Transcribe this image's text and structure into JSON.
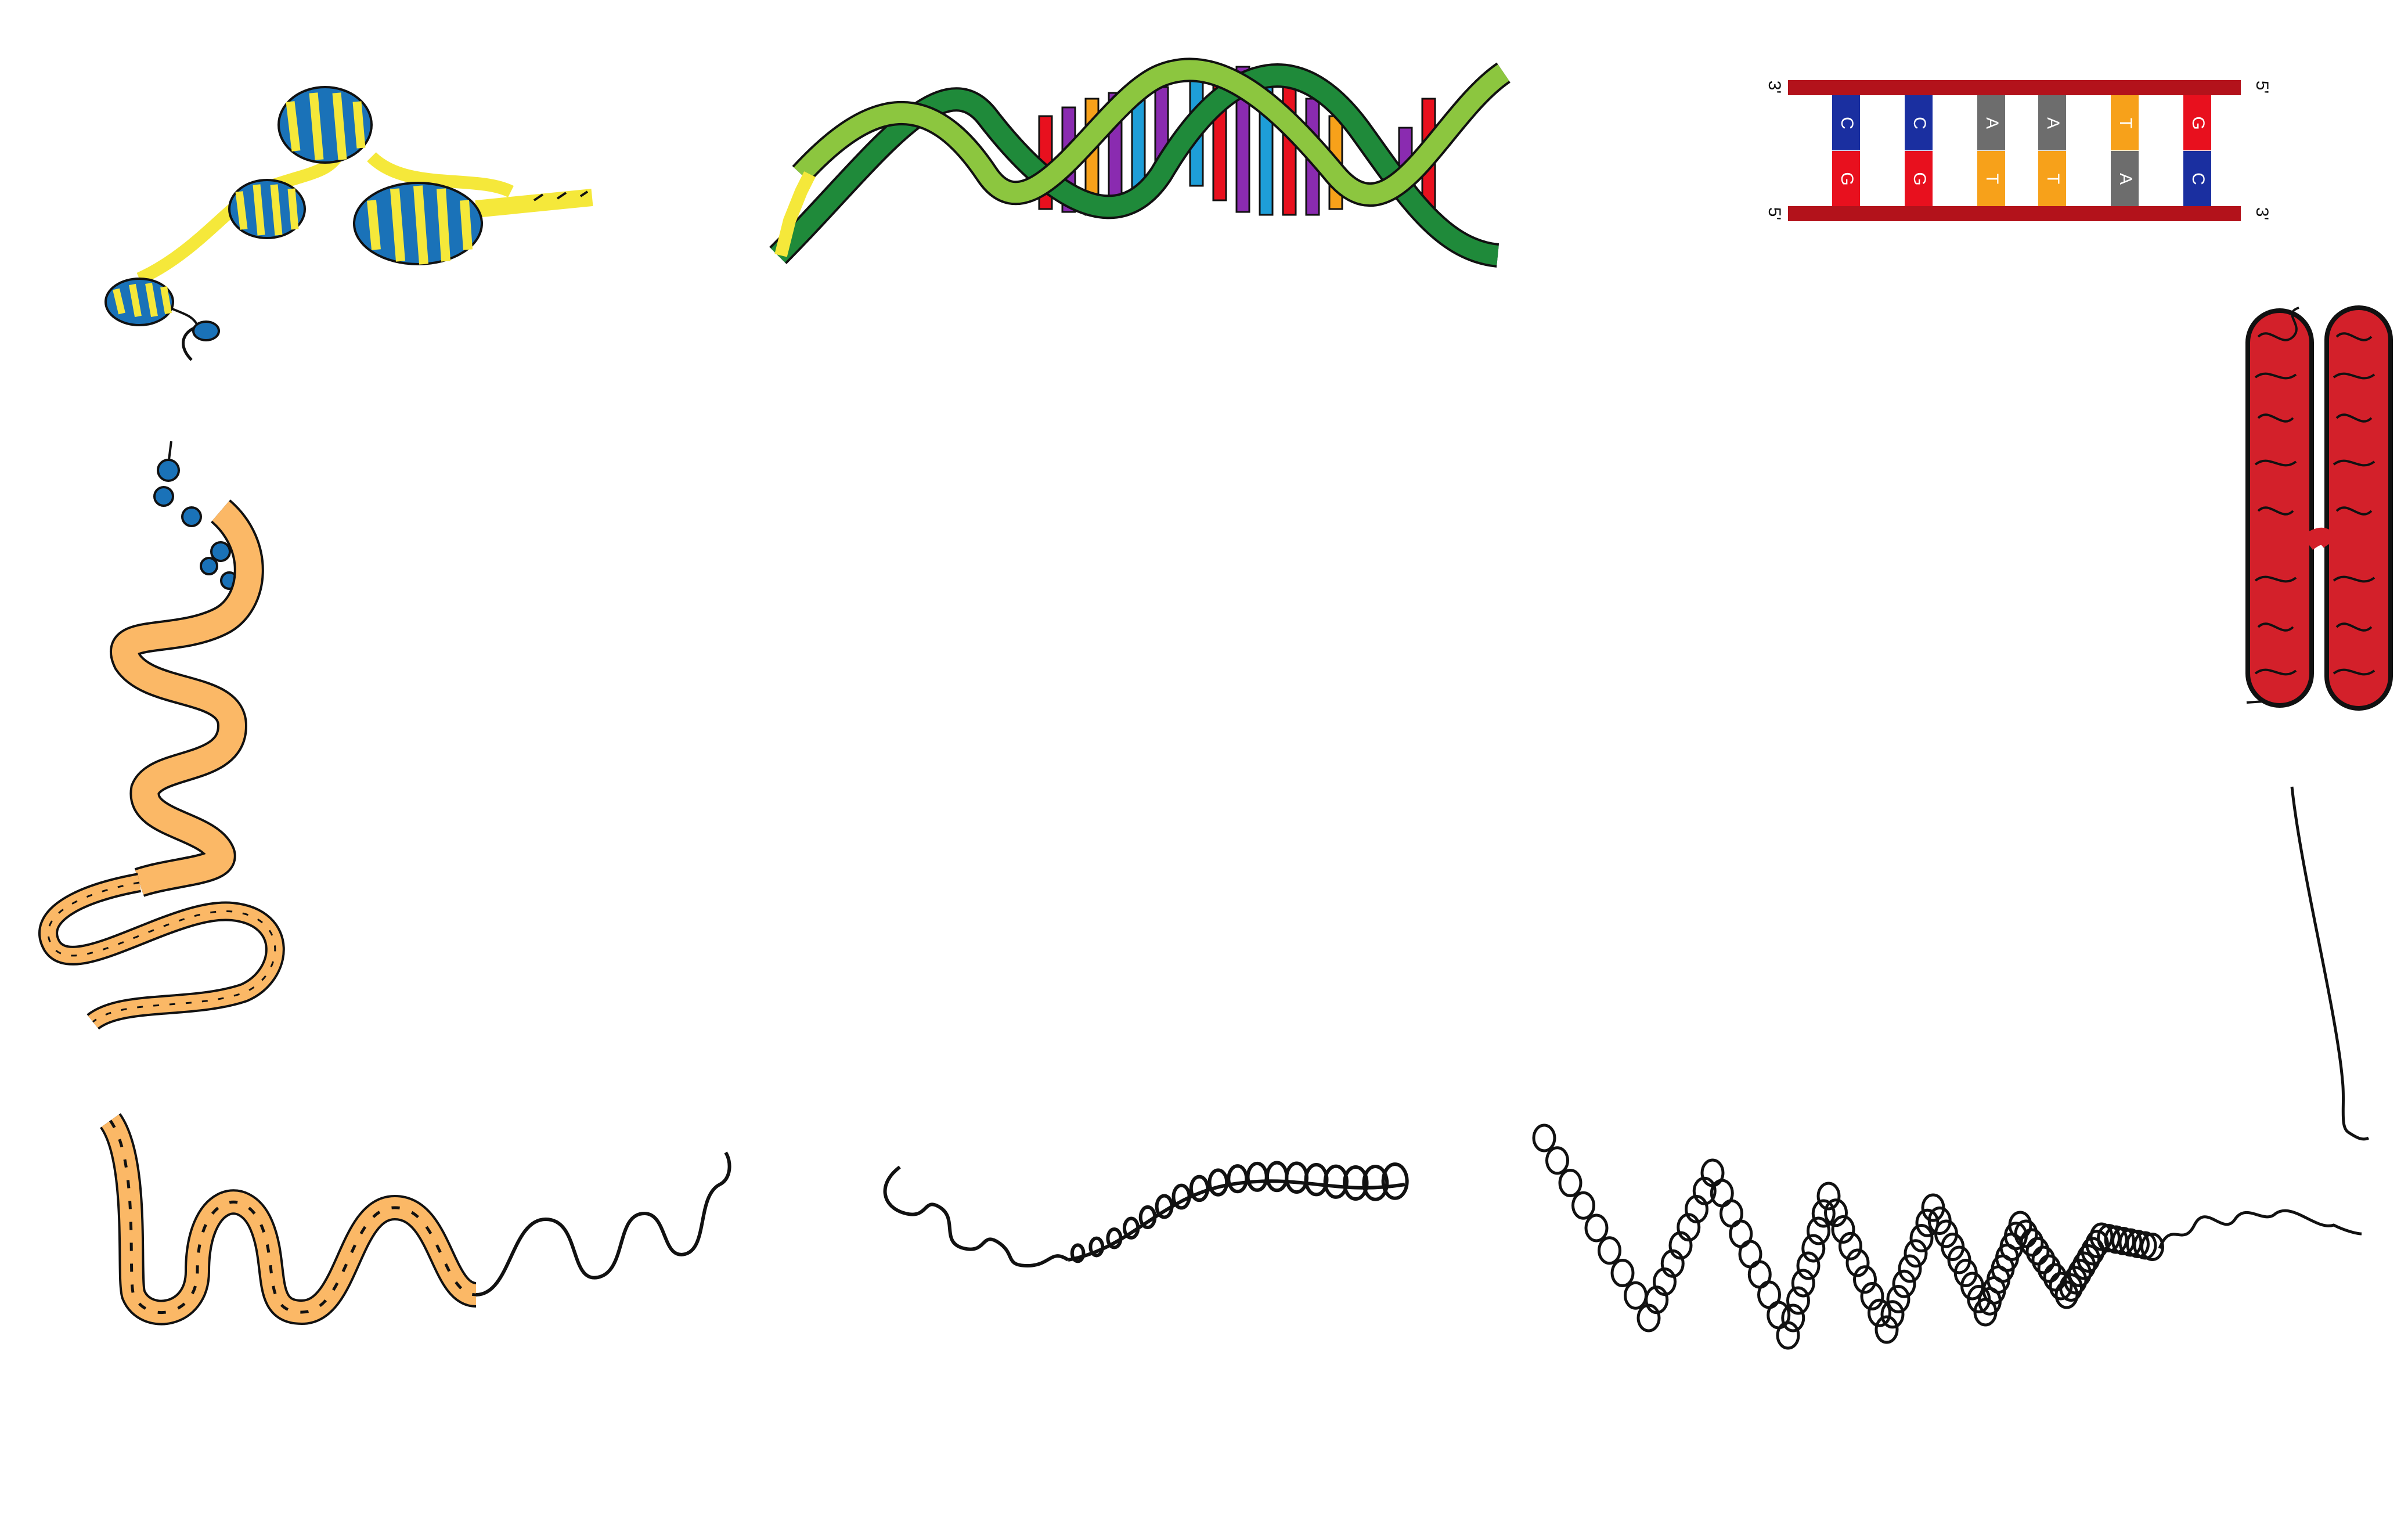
{
  "colors": {
    "background": "#ffffff",
    "nucleosome_blue": "#1a72b8",
    "nucleosome_yellow": "#f5e83a",
    "helix_dark_green": "#1f8a3a",
    "helix_light_green": "#8cc63f",
    "backbone_red": "#b3121b",
    "base_c_blue": "#1a2fa0",
    "base_g_red": "#e8101e",
    "base_a_gray": "#6d6d6d",
    "base_t_orange": "#f7a11a",
    "fiber_orange": "#fbb866",
    "chromosome_red": "#d3202a",
    "ink": "#111111"
  },
  "ladder": {
    "end_top_left": "3'",
    "end_top_right": "5'",
    "end_bottom_left": "5'",
    "end_bottom_right": "3'",
    "pairs": [
      {
        "top": "C",
        "bottom": "G"
      },
      {
        "top": "C",
        "bottom": "G"
      },
      {
        "top": "A",
        "bottom": "T"
      },
      {
        "top": "A",
        "bottom": "T"
      },
      {
        "top": "T",
        "bottom": "A"
      },
      {
        "top": "G",
        "bottom": "C"
      }
    ]
  },
  "icons": {
    "nucleosome_strand": "nucleosome-strand-icon",
    "double_helix": "dna-double-helix-icon",
    "base_pair_ladder": "base-pair-ladder-icon",
    "chromosome": "condensed-chromosome-icon",
    "coiled_fiber": "coiled-fiber-icon",
    "twisted_rope": "twisted-rope-icon",
    "supercoil": "supercoiled-strand-icon",
    "loops": "looped-domain-icon",
    "thread": "thin-thread-icon"
  }
}
